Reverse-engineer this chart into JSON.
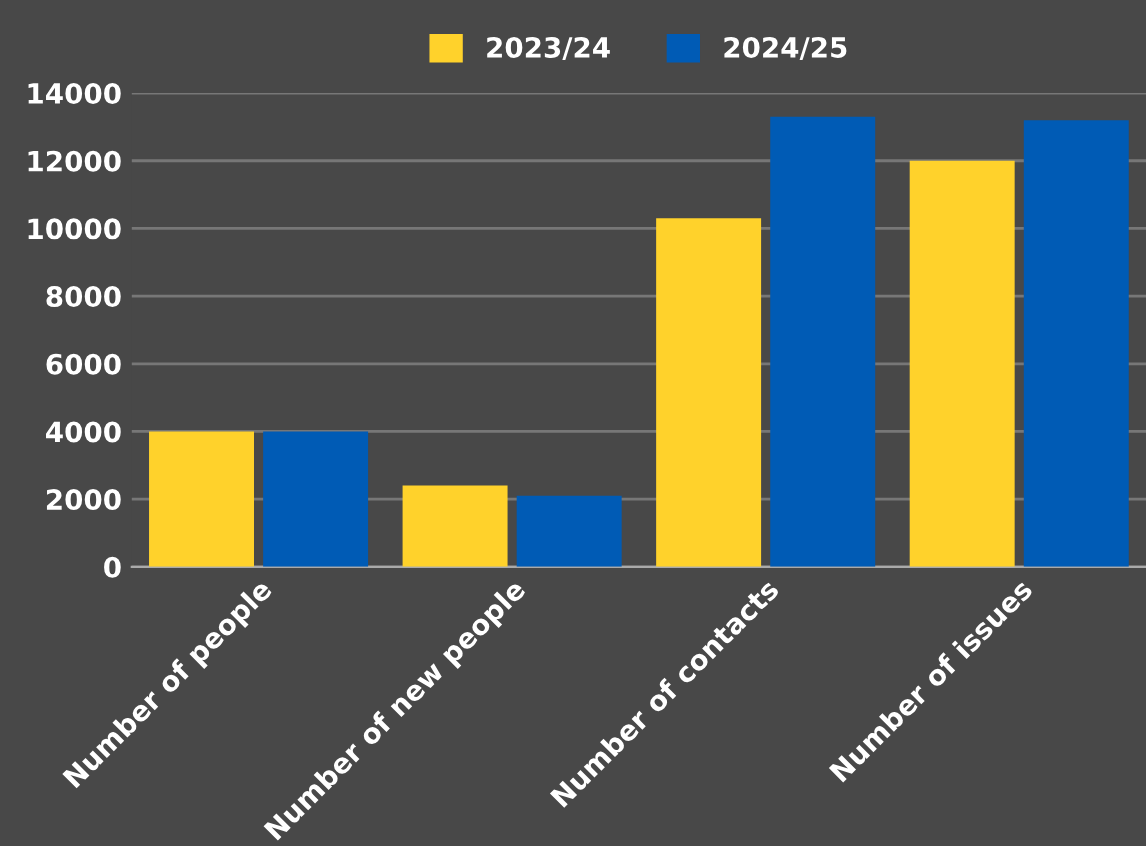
{
  "chart_data": {
    "type": "bar",
    "categories": [
      "Number of people",
      "Number of new people",
      "Number of contacts",
      "Number of issues"
    ],
    "series": [
      {
        "name": "2023/24",
        "color": "#ffd22b",
        "values": [
          4000,
          2400,
          10300,
          12000
        ]
      },
      {
        "name": "2024/25",
        "color": "#005bb5",
        "values": [
          4000,
          2100,
          13300,
          13200
        ]
      }
    ],
    "ylim": [
      0,
      14000
    ],
    "yticks": [
      0,
      2000,
      4000,
      6000,
      8000,
      10000,
      12000,
      14000
    ],
    "grid": "y",
    "legend": "top"
  }
}
